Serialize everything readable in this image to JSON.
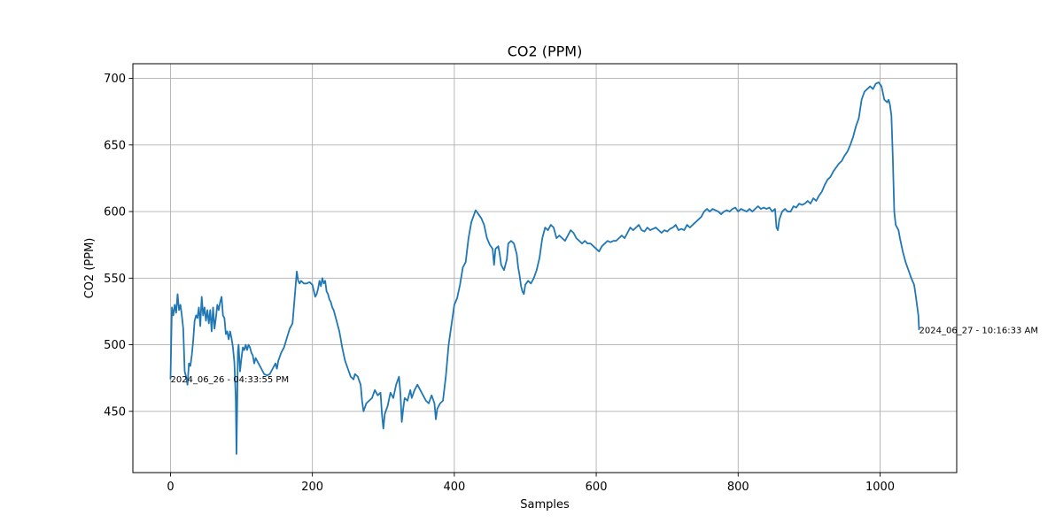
{
  "chart_data": {
    "type": "line",
    "title": "CO2 (PPM)",
    "xlabel": "Samples",
    "ylabel": "CO2 (PPM)",
    "xlim": [
      -53,
      1108
    ],
    "ylim": [
      404,
      711
    ],
    "xticks": [
      0,
      200,
      400,
      600,
      800,
      1000
    ],
    "yticks": [
      450,
      500,
      550,
      600,
      650,
      700
    ],
    "grid": true,
    "color": "#1f77b4",
    "annotations": [
      {
        "x": 0,
        "y": 474,
        "text": "2024_06_26 - 04:33:55 PM"
      },
      {
        "x": 1055,
        "y": 511,
        "text": "2024_06_27 - 10:16:33 AM"
      }
    ],
    "series": [
      {
        "name": "CO2 (PPM)",
        "points": [
          [
            0,
            474
          ],
          [
            2,
            528
          ],
          [
            4,
            522
          ],
          [
            6,
            530
          ],
          [
            8,
            524
          ],
          [
            10,
            538
          ],
          [
            12,
            526
          ],
          [
            14,
            530
          ],
          [
            16,
            522
          ],
          [
            18,
            512
          ],
          [
            20,
            480
          ],
          [
            22,
            476
          ],
          [
            24,
            470
          ],
          [
            26,
            486
          ],
          [
            28,
            484
          ],
          [
            30,
            492
          ],
          [
            32,
            503
          ],
          [
            34,
            518
          ],
          [
            36,
            522
          ],
          [
            38,
            520
          ],
          [
            40,
            528
          ],
          [
            42,
            514
          ],
          [
            44,
            536
          ],
          [
            46,
            522
          ],
          [
            48,
            528
          ],
          [
            50,
            518
          ],
          [
            52,
            526
          ],
          [
            54,
            516
          ],
          [
            56,
            526
          ],
          [
            58,
            510
          ],
          [
            60,
            528
          ],
          [
            62,
            512
          ],
          [
            64,
            520
          ],
          [
            66,
            530
          ],
          [
            68,
            526
          ],
          [
            70,
            532
          ],
          [
            72,
            536
          ],
          [
            74,
            522
          ],
          [
            76,
            520
          ],
          [
            78,
            508
          ],
          [
            80,
            510
          ],
          [
            82,
            504
          ],
          [
            84,
            510
          ],
          [
            86,
            505
          ],
          [
            88,
            498
          ],
          [
            90,
            487
          ],
          [
            92,
            460
          ],
          [
            93,
            418
          ],
          [
            94,
            454
          ],
          [
            95,
            495
          ],
          [
            96,
            500
          ],
          [
            98,
            480
          ],
          [
            100,
            490
          ],
          [
            102,
            498
          ],
          [
            104,
            496
          ],
          [
            106,
            500
          ],
          [
            108,
            496
          ],
          [
            110,
            500
          ],
          [
            112,
            498
          ],
          [
            114,
            494
          ],
          [
            116,
            492
          ],
          [
            118,
            486
          ],
          [
            120,
            490
          ],
          [
            124,
            486
          ],
          [
            128,
            482
          ],
          [
            132,
            478
          ],
          [
            136,
            477
          ],
          [
            140,
            478
          ],
          [
            144,
            482
          ],
          [
            148,
            486
          ],
          [
            150,
            482
          ],
          [
            152,
            488
          ],
          [
            156,
            494
          ],
          [
            160,
            498
          ],
          [
            164,
            505
          ],
          [
            168,
            512
          ],
          [
            172,
            516
          ],
          [
            176,
            542
          ],
          [
            178,
            555
          ],
          [
            180,
            548
          ],
          [
            182,
            546
          ],
          [
            184,
            548
          ],
          [
            188,
            546
          ],
          [
            192,
            546
          ],
          [
            196,
            547
          ],
          [
            200,
            545
          ],
          [
            204,
            536
          ],
          [
            206,
            538
          ],
          [
            208,
            542
          ],
          [
            210,
            548
          ],
          [
            212,
            544
          ],
          [
            214,
            550
          ],
          [
            216,
            546
          ],
          [
            218,
            548
          ],
          [
            220,
            540
          ],
          [
            222,
            538
          ],
          [
            224,
            534
          ],
          [
            226,
            532
          ],
          [
            228,
            528
          ],
          [
            230,
            526
          ],
          [
            234,
            518
          ],
          [
            238,
            510
          ],
          [
            242,
            498
          ],
          [
            246,
            488
          ],
          [
            250,
            482
          ],
          [
            254,
            476
          ],
          [
            258,
            474
          ],
          [
            260,
            478
          ],
          [
            264,
            476
          ],
          [
            268,
            470
          ],
          [
            270,
            458
          ],
          [
            272,
            450
          ],
          [
            276,
            456
          ],
          [
            280,
            458
          ],
          [
            284,
            460
          ],
          [
            288,
            466
          ],
          [
            292,
            462
          ],
          [
            296,
            464
          ],
          [
            298,
            448
          ],
          [
            300,
            437
          ],
          [
            302,
            448
          ],
          [
            306,
            454
          ],
          [
            310,
            464
          ],
          [
            314,
            460
          ],
          [
            318,
            470
          ],
          [
            322,
            476
          ],
          [
            324,
            464
          ],
          [
            326,
            442
          ],
          [
            328,
            452
          ],
          [
            330,
            460
          ],
          [
            334,
            458
          ],
          [
            338,
            466
          ],
          [
            340,
            460
          ],
          [
            344,
            466
          ],
          [
            348,
            470
          ],
          [
            352,
            466
          ],
          [
            356,
            462
          ],
          [
            360,
            458
          ],
          [
            364,
            456
          ],
          [
            368,
            462
          ],
          [
            372,
            456
          ],
          [
            374,
            444
          ],
          [
            376,
            452
          ],
          [
            380,
            456
          ],
          [
            384,
            458
          ],
          [
            388,
            476
          ],
          [
            392,
            500
          ],
          [
            396,
            515
          ],
          [
            400,
            530
          ],
          [
            404,
            535
          ],
          [
            408,
            545
          ],
          [
            412,
            558
          ],
          [
            416,
            562
          ],
          [
            420,
            580
          ],
          [
            424,
            592
          ],
          [
            428,
            598
          ],
          [
            430,
            601
          ],
          [
            434,
            598
          ],
          [
            438,
            595
          ],
          [
            442,
            590
          ],
          [
            446,
            580
          ],
          [
            450,
            575
          ],
          [
            454,
            572
          ],
          [
            456,
            560
          ],
          [
            458,
            572
          ],
          [
            462,
            574
          ],
          [
            464,
            568
          ],
          [
            466,
            560
          ],
          [
            468,
            558
          ],
          [
            470,
            556
          ],
          [
            474,
            564
          ],
          [
            476,
            576
          ],
          [
            480,
            578
          ],
          [
            484,
            576
          ],
          [
            488,
            568
          ],
          [
            490,
            558
          ],
          [
            492,
            552
          ],
          [
            494,
            544
          ],
          [
            496,
            540
          ],
          [
            498,
            538
          ],
          [
            500,
            545
          ],
          [
            504,
            548
          ],
          [
            508,
            546
          ],
          [
            512,
            550
          ],
          [
            516,
            556
          ],
          [
            520,
            565
          ],
          [
            524,
            580
          ],
          [
            528,
            588
          ],
          [
            532,
            586
          ],
          [
            536,
            590
          ],
          [
            540,
            588
          ],
          [
            544,
            580
          ],
          [
            548,
            582
          ],
          [
            552,
            580
          ],
          [
            556,
            578
          ],
          [
            560,
            582
          ],
          [
            564,
            586
          ],
          [
            568,
            584
          ],
          [
            572,
            580
          ],
          [
            576,
            578
          ],
          [
            580,
            576
          ],
          [
            584,
            578
          ],
          [
            588,
            576
          ],
          [
            592,
            576
          ],
          [
            596,
            574
          ],
          [
            600,
            572
          ],
          [
            604,
            570
          ],
          [
            608,
            574
          ],
          [
            612,
            576
          ],
          [
            616,
            578
          ],
          [
            620,
            577
          ],
          [
            624,
            578
          ],
          [
            628,
            578
          ],
          [
            632,
            580
          ],
          [
            636,
            582
          ],
          [
            640,
            580
          ],
          [
            644,
            584
          ],
          [
            648,
            588
          ],
          [
            652,
            586
          ],
          [
            656,
            588
          ],
          [
            660,
            590
          ],
          [
            664,
            586
          ],
          [
            668,
            585
          ],
          [
            672,
            588
          ],
          [
            676,
            586
          ],
          [
            680,
            587
          ],
          [
            684,
            588
          ],
          [
            688,
            586
          ],
          [
            692,
            584
          ],
          [
            696,
            586
          ],
          [
            700,
            585
          ],
          [
            704,
            587
          ],
          [
            708,
            588
          ],
          [
            712,
            590
          ],
          [
            716,
            586
          ],
          [
            720,
            587
          ],
          [
            724,
            586
          ],
          [
            728,
            590
          ],
          [
            732,
            588
          ],
          [
            736,
            590
          ],
          [
            740,
            592
          ],
          [
            744,
            594
          ],
          [
            748,
            596
          ],
          [
            752,
            600
          ],
          [
            756,
            602
          ],
          [
            760,
            600
          ],
          [
            764,
            602
          ],
          [
            768,
            601
          ],
          [
            772,
            600
          ],
          [
            776,
            598
          ],
          [
            780,
            600
          ],
          [
            784,
            601
          ],
          [
            788,
            600
          ],
          [
            792,
            602
          ],
          [
            796,
            603
          ],
          [
            800,
            600
          ],
          [
            804,
            602
          ],
          [
            808,
            601
          ],
          [
            812,
            600
          ],
          [
            816,
            602
          ],
          [
            820,
            600
          ],
          [
            824,
            602
          ],
          [
            828,
            604
          ],
          [
            832,
            602
          ],
          [
            836,
            603
          ],
          [
            840,
            602
          ],
          [
            844,
            603
          ],
          [
            848,
            600
          ],
          [
            852,
            602
          ],
          [
            854,
            588
          ],
          [
            856,
            586
          ],
          [
            858,
            594
          ],
          [
            862,
            600
          ],
          [
            866,
            602
          ],
          [
            870,
            600
          ],
          [
            874,
            600
          ],
          [
            878,
            604
          ],
          [
            882,
            603
          ],
          [
            886,
            606
          ],
          [
            890,
            605
          ],
          [
            894,
            606
          ],
          [
            898,
            608
          ],
          [
            902,
            606
          ],
          [
            906,
            610
          ],
          [
            910,
            608
          ],
          [
            914,
            612
          ],
          [
            918,
            615
          ],
          [
            922,
            620
          ],
          [
            926,
            624
          ],
          [
            930,
            626
          ],
          [
            934,
            630
          ],
          [
            938,
            633
          ],
          [
            942,
            636
          ],
          [
            946,
            638
          ],
          [
            950,
            642
          ],
          [
            954,
            645
          ],
          [
            958,
            650
          ],
          [
            962,
            656
          ],
          [
            966,
            664
          ],
          [
            970,
            670
          ],
          [
            974,
            684
          ],
          [
            978,
            690
          ],
          [
            982,
            692
          ],
          [
            986,
            694
          ],
          [
            990,
            692
          ],
          [
            994,
            696
          ],
          [
            998,
            697
          ],
          [
            1002,
            694
          ],
          [
            1006,
            684
          ],
          [
            1010,
            682
          ],
          [
            1012,
            684
          ],
          [
            1014,
            680
          ],
          [
            1016,
            672
          ],
          [
            1018,
            640
          ],
          [
            1020,
            600
          ],
          [
            1022,
            590
          ],
          [
            1026,
            586
          ],
          [
            1028,
            580
          ],
          [
            1032,
            570
          ],
          [
            1036,
            562
          ],
          [
            1040,
            556
          ],
          [
            1044,
            550
          ],
          [
            1048,
            545
          ],
          [
            1050,
            538
          ],
          [
            1052,
            530
          ],
          [
            1054,
            522
          ],
          [
            1055,
            511
          ]
        ]
      }
    ]
  }
}
